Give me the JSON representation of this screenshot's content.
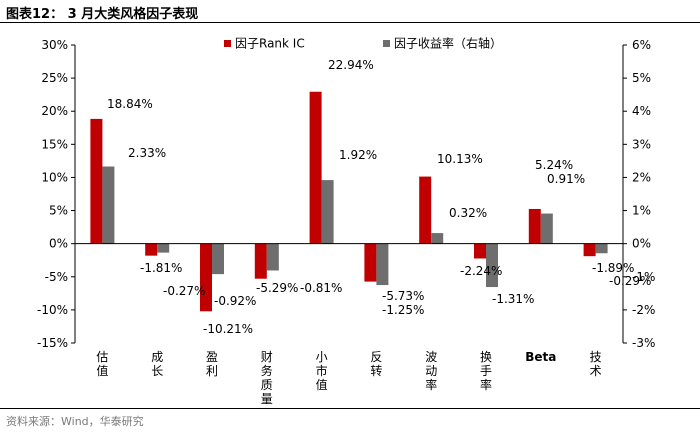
{
  "figure": {
    "title": "图表12： 3 月大类风格因子表现",
    "source": "资料来源：Wind，华泰研究"
  },
  "colors": {
    "ic": "#c00000",
    "ret": "#6e6e6e",
    "axis": "#000000"
  },
  "chart_data": {
    "type": "bar",
    "title": "3 月大类风格因子表现",
    "categories": [
      "估值",
      "成长",
      "盈利",
      "财务质量",
      "小市值",
      "反转",
      "波动率",
      "换手率",
      "Beta",
      "技术"
    ],
    "series": [
      {
        "name": "因子Rank IC",
        "axis": "left",
        "values": [
          18.84,
          -1.81,
          -10.21,
          -5.29,
          22.94,
          -5.73,
          10.13,
          -2.24,
          5.24,
          -1.89
        ],
        "labels": [
          "18.84%",
          "-1.81%",
          "-10.21%",
          "-5.29%",
          "22.94%",
          "-5.73%",
          "10.13%",
          "-2.24%",
          "5.24%",
          "-1.89%"
        ]
      },
      {
        "name": "因子收益率（右轴）",
        "axis": "right",
        "values": [
          2.33,
          -0.27,
          -0.92,
          -0.81,
          1.92,
          -1.25,
          0.32,
          -1.31,
          0.91,
          -0.29
        ],
        "labels": [
          "2.33%",
          "-0.27%",
          "-0.92%",
          "-0.81%",
          "1.92%",
          "-1.25%",
          "0.32%",
          "-1.31%",
          "0.91%",
          "-0.29%"
        ]
      }
    ],
    "left_axis": {
      "ylim": [
        -15,
        30
      ],
      "ticks": [
        30,
        25,
        20,
        15,
        10,
        5,
        0,
        -5,
        -10,
        -15
      ],
      "tick_labels": [
        "30%",
        "25%",
        "20%",
        "15%",
        "10%",
        "5%",
        "0%",
        "-5%",
        "-10%",
        "-15%"
      ]
    },
    "right_axis": {
      "ylim": [
        -3,
        6
      ],
      "ticks": [
        6,
        5,
        4,
        3,
        2,
        1,
        0,
        -1,
        -2,
        -3
      ],
      "tick_labels": [
        "6%",
        "5%",
        "4%",
        "3%",
        "2%",
        "1%",
        "0%",
        "-1%",
        "-2%",
        "-3%"
      ]
    },
    "legend": [
      "因子Rank IC",
      "因子收益率（右轴）"
    ],
    "legend_position": "top-center",
    "grid": false
  }
}
